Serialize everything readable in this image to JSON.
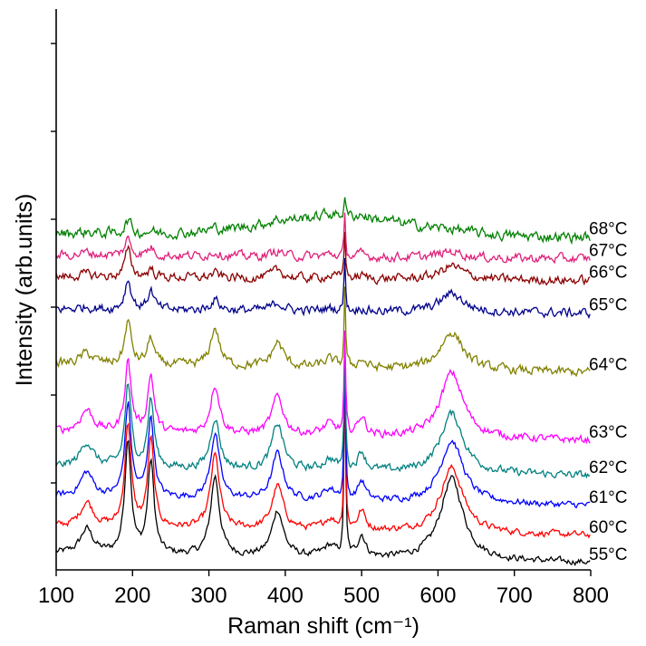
{
  "chart_data": {
    "type": "line",
    "title": "",
    "xlabel": "Raman shift (cm⁻¹)",
    "ylabel": "Intensity (arb.units)",
    "xlim": [
      100,
      800
    ],
    "x_ticks": [
      100,
      200,
      300,
      400,
      500,
      600,
      700,
      800
    ],
    "y_ticks_labeled": false,
    "y_tick_count": 6,
    "grid": false,
    "legend": "none",
    "offset_scale_units": 100,
    "peak_positions": [
      140,
      194,
      224,
      308,
      390,
      458,
      478,
      500,
      618
    ],
    "series": [
      {
        "name": "55°C",
        "color": "#000000",
        "baseline": 0,
        "peak_heights": [
          4.5,
          21,
          17,
          14.5,
          8.5,
          2,
          35,
          4,
          15
        ],
        "noise": 0.5
      },
      {
        "name": "60°C",
        "color": "#ff0000",
        "baseline": 5,
        "peak_heights": [
          4.5,
          19,
          16,
          13.5,
          8,
          2,
          30,
          3.5,
          12
        ],
        "noise": 0.5
      },
      {
        "name": "61°C",
        "color": "#0000ff",
        "baseline": 10.5,
        "peak_heights": [
          4.5,
          17,
          14.5,
          12,
          8.5,
          2,
          25,
          3.5,
          11.5
        ],
        "noise": 0.5
      },
      {
        "name": "62°C",
        "color": "#008080",
        "baseline": 16,
        "peak_heights": [
          4.5,
          15,
          12.5,
          9.5,
          8.5,
          2,
          22,
          3.5,
          11
        ],
        "noise": 0.6
      },
      {
        "name": "63°C",
        "color": "#ff00ff",
        "baseline": 22.5,
        "peak_heights": [
          4,
          13,
          10.5,
          9,
          7,
          2,
          18,
          3.5,
          12
        ],
        "noise": 0.6
      },
      {
        "name": "64°C",
        "color": "#808000",
        "baseline": 35,
        "peak_heights": [
          2,
          8,
          5,
          7,
          4.5,
          1.5,
          14,
          1.5,
          7
        ],
        "noise": 0.7
      },
      {
        "name": "65°C",
        "color": "#00008b",
        "baseline": 45,
        "peak_heights": [
          0.5,
          5.5,
          3.5,
          2,
          1.5,
          0.5,
          10,
          0.5,
          3.5
        ],
        "noise": 0.7
      },
      {
        "name": "66°C",
        "color": "#8b0000",
        "baseline": 51,
        "peak_heights": [
          0.5,
          5,
          1.5,
          0.8,
          1.5,
          0.5,
          9,
          0.5,
          2.5
        ],
        "noise": 0.7
      },
      {
        "name": "67°C",
        "color": "#e0207a",
        "baseline": 55,
        "peak_heights": [
          0.5,
          3,
          1.5,
          0.8,
          1,
          0.5,
          7,
          0.5,
          1.2
        ],
        "noise": 0.7
      },
      {
        "name": "68°C",
        "color": "#008000",
        "baseline": 59,
        "peak_heights": [
          0.3,
          2.5,
          0.5,
          0.5,
          0.5,
          0.5,
          4,
          0.5,
          0.5
        ],
        "noise": 0.8,
        "broad_hump": 3.5
      }
    ]
  }
}
